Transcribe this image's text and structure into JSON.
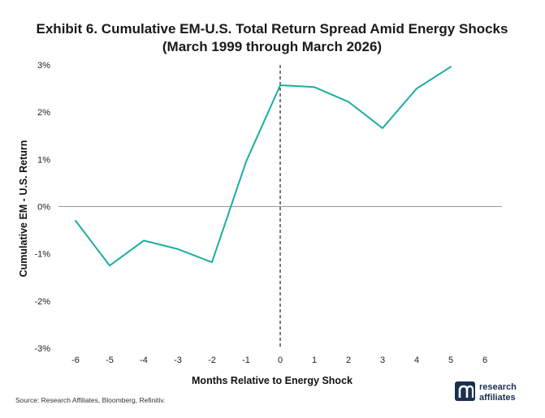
{
  "chart_data": {
    "type": "line",
    "title": "Exhibit 6. Cumulative EM-U.S. Total Return Spread Amid Energy Shocks",
    "subtitle": "(March 1999 through March 2026)",
    "xlabel": "Months Relative to Energy Shock",
    "ylabel": "Cumulative EM - U.S. Return",
    "xlim": [
      -6.5,
      6.5
    ],
    "ylim": [
      -3,
      3
    ],
    "x_ticks": [
      "-6",
      "-5",
      "-4",
      "-3",
      "-2",
      "-1",
      "0",
      "1",
      "2",
      "3",
      "4",
      "5",
      "6"
    ],
    "y_ticks": [
      "3%",
      "2%",
      "1%",
      "0%",
      "-1%",
      "-2%",
      "-3%"
    ],
    "grid": false,
    "zero_line": true,
    "event_marker_x": 0,
    "series": [
      {
        "x": [
          -6,
          -5,
          -4,
          -3,
          -2,
          -1,
          0,
          1,
          2,
          3,
          4,
          5
        ],
        "values": [
          -0.3,
          -1.25,
          -0.72,
          -0.9,
          -1.18,
          0.95,
          2.57,
          2.53,
          2.22,
          1.66,
          2.5,
          2.96
        ],
        "color": "#1aaf9f"
      }
    ],
    "colors": {
      "line": "#1aaf9f",
      "axis": "#999999",
      "marker": "#222222"
    }
  },
  "footer": {
    "source": "Source: Research Affiliates, Bloomberg, Refinitiv.",
    "logo_line1": "research",
    "logo_line2": "affiliates",
    "logo_color": "#1c2f4f"
  }
}
